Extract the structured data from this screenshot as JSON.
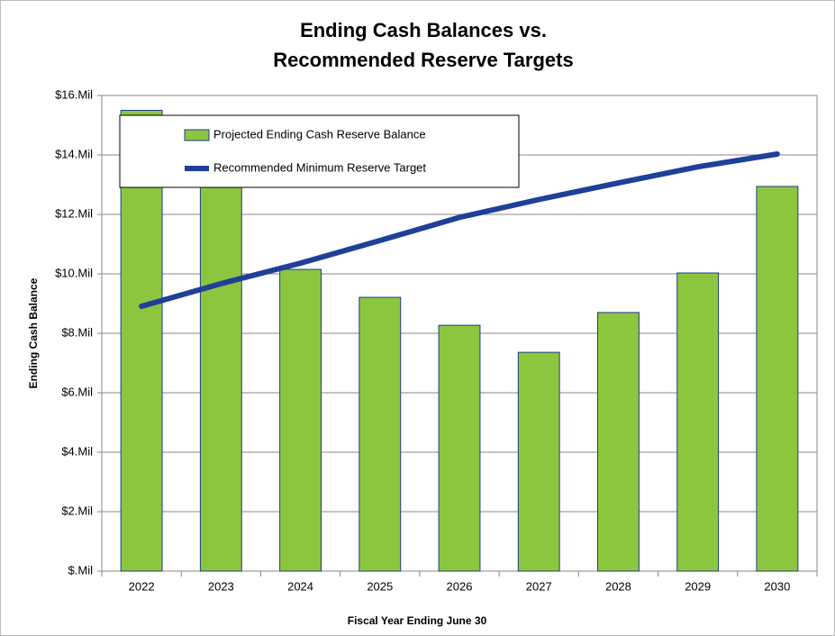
{
  "chart_data": {
    "type": "bar",
    "title": [
      "Ending Cash Balances vs.",
      "Recommended Reserve Targets"
    ],
    "x_label": "Fiscal Year Ending June 30",
    "y_label": "Ending Cash Balance",
    "categories": [
      "2022",
      "2023",
      "2024",
      "2025",
      "2026",
      "2027",
      "2028",
      "2029",
      "2030"
    ],
    "series": [
      {
        "name": "Projected Ending Cash Reserve Balance",
        "type": "bar",
        "color": "#8cc63f",
        "edge_color": "#1f3c88",
        "values": [
          15.5,
          15.0,
          10.15,
          9.21,
          8.27,
          7.36,
          8.7,
          10.03,
          12.94
        ]
      },
      {
        "name": "Recommended Minimum Reserve Target",
        "type": "line",
        "color": "#1f3f99",
        "values": [
          8.91,
          9.67,
          10.36,
          11.12,
          11.9,
          12.5,
          13.06,
          13.6,
          14.03
        ]
      }
    ],
    "ylim": [
      0,
      16
    ],
    "yticks": [
      {
        "value": 0,
        "label": "$.Mil"
      },
      {
        "value": 2,
        "label": "$2.Mil"
      },
      {
        "value": 4,
        "label": "$4.Mil"
      },
      {
        "value": 6,
        "label": "$6.Mil"
      },
      {
        "value": 8,
        "label": "$8.Mil"
      },
      {
        "value": 10,
        "label": "$10.Mil"
      },
      {
        "value": 12,
        "label": "$12.Mil"
      },
      {
        "value": 14,
        "label": "$14.Mil"
      },
      {
        "value": 16,
        "label": "$16.Mil"
      }
    ],
    "grid": true,
    "legend": "upper left"
  }
}
